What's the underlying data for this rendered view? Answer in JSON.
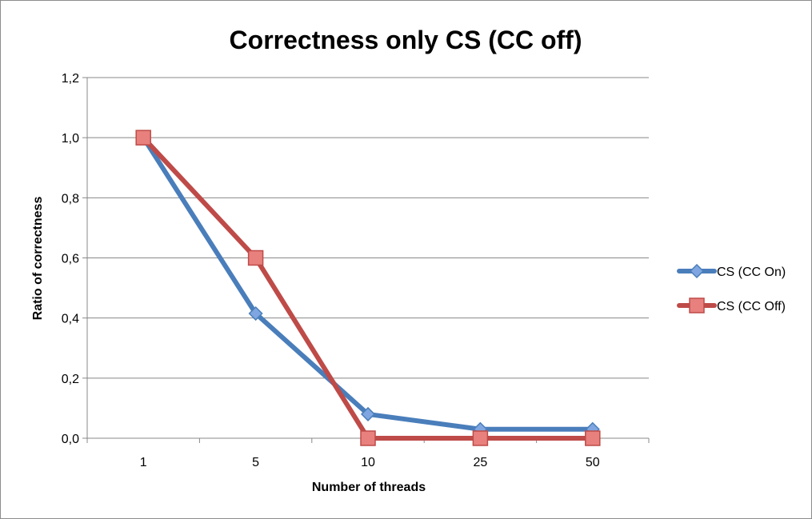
{
  "chart_data": {
    "type": "line",
    "title": "Correctness only CS (CC off)",
    "xlabel": "Number of threads",
    "ylabel": "Ratio of correctness",
    "categories": [
      "1",
      "5",
      "10",
      "25",
      "50"
    ],
    "ylim": [
      0,
      1.2
    ],
    "yticks": [
      "0,0",
      "0,2",
      "0,4",
      "0,6",
      "0,8",
      "1,0",
      "1,2"
    ],
    "grid": "horizontal",
    "legend": "right",
    "series": [
      {
        "name": "CS (CC On)",
        "values": [
          1.0,
          0.415,
          0.08,
          0.03,
          0.03
        ],
        "color": "#4a7ebb",
        "marker": "diamond",
        "marker_fill": "#7fa6e0"
      },
      {
        "name": "CS (CC Off)",
        "values": [
          1.0,
          0.6,
          0.0,
          0.0,
          0.0
        ],
        "color": "#be4b48",
        "marker": "square",
        "marker_fill": "#e8807d"
      }
    ]
  }
}
